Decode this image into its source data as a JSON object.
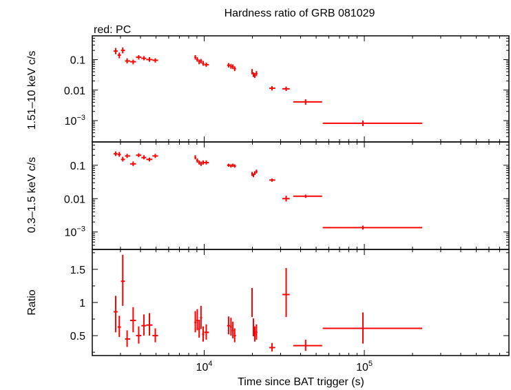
{
  "chart_data": {
    "type": "scatter",
    "title": "Hardness ratio of GRB 081029",
    "subtitle": "red: PC",
    "xlabel": "Time since BAT trigger (s)",
    "x_scale": "log",
    "xlim": [
      2000,
      800000
    ],
    "x_ticks": [
      {
        "value": 10000,
        "base": "10",
        "exp": "4"
      },
      {
        "value": 100000,
        "base": "10",
        "exp": "5"
      }
    ],
    "series_color": "#ff0000",
    "panels": [
      {
        "name": "hard",
        "ylabel": "1.51–10 keV c/s",
        "y_scale": "log",
        "ylim": [
          0.0002,
          0.6
        ],
        "y_ticks": [
          {
            "value": 0.1,
            "label": "0.1"
          },
          {
            "value": 0.01,
            "label": "0.01"
          },
          {
            "value": 0.001,
            "base": "10",
            "exp": "−3"
          }
        ],
        "points": [
          {
            "x": 2800,
            "xlo": 2720,
            "xhi": 2880,
            "y": 0.19,
            "ylo": 0.15,
            "yhi": 0.24
          },
          {
            "x": 2950,
            "xlo": 2880,
            "xhi": 3020,
            "y": 0.14,
            "ylo": 0.11,
            "yhi": 0.17
          },
          {
            "x": 3100,
            "xlo": 3020,
            "xhi": 3200,
            "y": 0.2,
            "ylo": 0.16,
            "yhi": 0.25
          },
          {
            "x": 3300,
            "xlo": 3200,
            "xhi": 3450,
            "y": 0.09,
            "ylo": 0.075,
            "yhi": 0.11
          },
          {
            "x": 3600,
            "xlo": 3450,
            "xhi": 3750,
            "y": 0.085,
            "ylo": 0.07,
            "yhi": 0.1
          },
          {
            "x": 3900,
            "xlo": 3750,
            "xhi": 4050,
            "y": 0.12,
            "ylo": 0.1,
            "yhi": 0.14
          },
          {
            "x": 4200,
            "xlo": 4050,
            "xhi": 4350,
            "y": 0.11,
            "ylo": 0.095,
            "yhi": 0.13
          },
          {
            "x": 4550,
            "xlo": 4350,
            "xhi": 4750,
            "y": 0.1,
            "ylo": 0.085,
            "yhi": 0.12
          },
          {
            "x": 4950,
            "xlo": 4750,
            "xhi": 5150,
            "y": 0.095,
            "ylo": 0.08,
            "yhi": 0.11
          },
          {
            "x": 8800,
            "xlo": 8680,
            "xhi": 8920,
            "y": 0.12,
            "ylo": 0.1,
            "yhi": 0.14
          },
          {
            "x": 9050,
            "xlo": 8920,
            "xhi": 9180,
            "y": 0.1,
            "ylo": 0.085,
            "yhi": 0.12
          },
          {
            "x": 9300,
            "xlo": 9180,
            "xhi": 9420,
            "y": 0.085,
            "ylo": 0.07,
            "yhi": 0.1
          },
          {
            "x": 9550,
            "xlo": 9420,
            "xhi": 9700,
            "y": 0.09,
            "ylo": 0.075,
            "yhi": 0.105
          },
          {
            "x": 9850,
            "xlo": 9700,
            "xhi": 10000,
            "y": 0.075,
            "ylo": 0.063,
            "yhi": 0.09
          },
          {
            "x": 10300,
            "xlo": 10000,
            "xhi": 10700,
            "y": 0.068,
            "ylo": 0.058,
            "yhi": 0.08
          },
          {
            "x": 14200,
            "xlo": 13900,
            "xhi": 14500,
            "y": 0.065,
            "ylo": 0.055,
            "yhi": 0.077
          },
          {
            "x": 14700,
            "xlo": 14500,
            "xhi": 14900,
            "y": 0.06,
            "ylo": 0.05,
            "yhi": 0.072
          },
          {
            "x": 15100,
            "xlo": 14900,
            "xhi": 15300,
            "y": 0.058,
            "ylo": 0.049,
            "yhi": 0.069
          },
          {
            "x": 15500,
            "xlo": 15300,
            "xhi": 15800,
            "y": 0.05,
            "ylo": 0.042,
            "yhi": 0.06
          },
          {
            "x": 19900,
            "xlo": 19700,
            "xhi": 20100,
            "y": 0.04,
            "ylo": 0.033,
            "yhi": 0.049
          },
          {
            "x": 20300,
            "xlo": 20100,
            "xhi": 20500,
            "y": 0.032,
            "ylo": 0.027,
            "yhi": 0.038
          },
          {
            "x": 20700,
            "xlo": 20500,
            "xhi": 20950,
            "y": 0.03,
            "ylo": 0.025,
            "yhi": 0.036
          },
          {
            "x": 21200,
            "xlo": 20950,
            "xhi": 21500,
            "y": 0.035,
            "ylo": 0.029,
            "yhi": 0.042
          },
          {
            "x": 26500,
            "xlo": 25500,
            "xhi": 27800,
            "y": 0.0115,
            "ylo": 0.0097,
            "yhi": 0.0135
          },
          {
            "x": 32500,
            "xlo": 30800,
            "xhi": 34200,
            "y": 0.011,
            "ylo": 0.0093,
            "yhi": 0.013
          },
          {
            "x": 43000,
            "xlo": 36000,
            "xhi": 54500,
            "y": 0.0041,
            "ylo": 0.0033,
            "yhi": 0.005
          },
          {
            "x": 98000,
            "xlo": 55000,
            "xhi": 230000,
            "y": 0.00082,
            "ylo": 0.00066,
            "yhi": 0.001
          }
        ]
      },
      {
        "name": "soft",
        "ylabel": "0.3–1.5 keV c/s",
        "y_scale": "log",
        "ylim": [
          0.0003,
          0.5
        ],
        "y_ticks": [
          {
            "value": 0.1,
            "label": "0.1"
          },
          {
            "value": 0.01,
            "label": "0.01"
          },
          {
            "value": 0.001,
            "base": "10",
            "exp": "−3"
          }
        ],
        "points": [
          {
            "x": 2800,
            "xlo": 2720,
            "xhi": 2880,
            "y": 0.22,
            "ylo": 0.19,
            "yhi": 0.26
          },
          {
            "x": 2950,
            "xlo": 2880,
            "xhi": 3020,
            "y": 0.21,
            "ylo": 0.18,
            "yhi": 0.25
          },
          {
            "x": 3100,
            "xlo": 3020,
            "xhi": 3200,
            "y": 0.15,
            "ylo": 0.13,
            "yhi": 0.18
          },
          {
            "x": 3300,
            "xlo": 3200,
            "xhi": 3450,
            "y": 0.19,
            "ylo": 0.165,
            "yhi": 0.22
          },
          {
            "x": 3600,
            "xlo": 3450,
            "xhi": 3750,
            "y": 0.11,
            "ylo": 0.095,
            "yhi": 0.13
          },
          {
            "x": 3900,
            "xlo": 3750,
            "xhi": 4050,
            "y": 0.2,
            "ylo": 0.175,
            "yhi": 0.23
          },
          {
            "x": 4200,
            "xlo": 4050,
            "xhi": 4350,
            "y": 0.17,
            "ylo": 0.15,
            "yhi": 0.2
          },
          {
            "x": 4550,
            "xlo": 4350,
            "xhi": 4750,
            "y": 0.15,
            "ylo": 0.13,
            "yhi": 0.17
          },
          {
            "x": 4950,
            "xlo": 4750,
            "xhi": 5150,
            "y": 0.19,
            "ylo": 0.165,
            "yhi": 0.22
          },
          {
            "x": 8800,
            "xlo": 8680,
            "xhi": 8920,
            "y": 0.17,
            "ylo": 0.15,
            "yhi": 0.2
          },
          {
            "x": 9050,
            "xlo": 8920,
            "xhi": 9180,
            "y": 0.14,
            "ylo": 0.12,
            "yhi": 0.16
          },
          {
            "x": 9300,
            "xlo": 9180,
            "xhi": 9420,
            "y": 0.12,
            "ylo": 0.105,
            "yhi": 0.14
          },
          {
            "x": 9550,
            "xlo": 9420,
            "xhi": 9700,
            "y": 0.11,
            "ylo": 0.095,
            "yhi": 0.13
          },
          {
            "x": 9850,
            "xlo": 9700,
            "xhi": 10000,
            "y": 0.12,
            "ylo": 0.105,
            "yhi": 0.14
          },
          {
            "x": 10300,
            "xlo": 10000,
            "xhi": 10700,
            "y": 0.12,
            "ylo": 0.105,
            "yhi": 0.14
          },
          {
            "x": 14200,
            "xlo": 13900,
            "xhi": 14500,
            "y": 0.1,
            "ylo": 0.09,
            "yhi": 0.112
          },
          {
            "x": 14700,
            "xlo": 14500,
            "xhi": 14900,
            "y": 0.095,
            "ylo": 0.085,
            "yhi": 0.107
          },
          {
            "x": 15100,
            "xlo": 14900,
            "xhi": 15300,
            "y": 0.1,
            "ylo": 0.09,
            "yhi": 0.112
          },
          {
            "x": 15500,
            "xlo": 15300,
            "xhi": 15800,
            "y": 0.095,
            "ylo": 0.085,
            "yhi": 0.107
          },
          {
            "x": 19900,
            "xlo": 19700,
            "xhi": 20100,
            "y": 0.055,
            "ylo": 0.048,
            "yhi": 0.063
          },
          {
            "x": 20300,
            "xlo": 20100,
            "xhi": 20500,
            "y": 0.05,
            "ylo": 0.044,
            "yhi": 0.057
          },
          {
            "x": 20700,
            "xlo": 20500,
            "xhi": 20950,
            "y": 0.058,
            "ylo": 0.051,
            "yhi": 0.066
          },
          {
            "x": 21200,
            "xlo": 20950,
            "xhi": 21500,
            "y": 0.065,
            "ylo": 0.057,
            "yhi": 0.074
          },
          {
            "x": 26500,
            "xlo": 25500,
            "xhi": 27800,
            "y": 0.036,
            "ylo": 0.032,
            "yhi": 0.04
          },
          {
            "x": 32500,
            "xlo": 30800,
            "xhi": 34200,
            "y": 0.01,
            "ylo": 0.0082,
            "yhi": 0.0122
          },
          {
            "x": 43000,
            "xlo": 36000,
            "xhi": 54500,
            "y": 0.0118,
            "ylo": 0.0105,
            "yhi": 0.0132
          },
          {
            "x": 98000,
            "xlo": 55000,
            "xhi": 230000,
            "y": 0.00135,
            "ylo": 0.00118,
            "yhi": 0.00155
          }
        ]
      },
      {
        "name": "ratio",
        "ylabel": "Ratio",
        "y_scale": "linear",
        "ylim": [
          0.2,
          1.8
        ],
        "y_ticks": [
          {
            "value": 0.5,
            "label": "0.5"
          },
          {
            "value": 1,
            "label": "1"
          },
          {
            "value": 1.5,
            "label": "1.5"
          }
        ],
        "points": [
          {
            "x": 2800,
            "xlo": 2720,
            "xhi": 2880,
            "y": 0.86,
            "ylo": 0.55,
            "yhi": 1.1
          },
          {
            "x": 2950,
            "xlo": 2880,
            "xhi": 3020,
            "y": 0.63,
            "ylo": 0.48,
            "yhi": 0.8
          },
          {
            "x": 3100,
            "xlo": 3020,
            "xhi": 3200,
            "y": 1.32,
            "ylo": 0.95,
            "yhi": 1.72
          },
          {
            "x": 3300,
            "xlo": 3200,
            "xhi": 3450,
            "y": 0.45,
            "ylo": 0.33,
            "yhi": 0.58
          },
          {
            "x": 3600,
            "xlo": 3450,
            "xhi": 3750,
            "y": 0.73,
            "ylo": 0.55,
            "yhi": 0.93
          },
          {
            "x": 3900,
            "xlo": 3750,
            "xhi": 4050,
            "y": 0.5,
            "ylo": 0.38,
            "yhi": 0.64
          },
          {
            "x": 4200,
            "xlo": 4050,
            "xhi": 4350,
            "y": 0.65,
            "ylo": 0.5,
            "yhi": 0.82
          },
          {
            "x": 4550,
            "xlo": 4350,
            "xhi": 4750,
            "y": 0.66,
            "ylo": 0.5,
            "yhi": 0.84
          },
          {
            "x": 4950,
            "xlo": 4750,
            "xhi": 5150,
            "y": 0.5,
            "ylo": 0.4,
            "yhi": 0.61
          },
          {
            "x": 8800,
            "xlo": 8680,
            "xhi": 8920,
            "y": 0.7,
            "ylo": 0.55,
            "yhi": 0.87
          },
          {
            "x": 9050,
            "xlo": 8920,
            "xhi": 9180,
            "y": 0.73,
            "ylo": 0.58,
            "yhi": 0.9
          },
          {
            "x": 9300,
            "xlo": 9180,
            "xhi": 9420,
            "y": 0.6,
            "ylo": 0.47,
            "yhi": 0.74
          },
          {
            "x": 9550,
            "xlo": 9420,
            "xhi": 9700,
            "y": 0.77,
            "ylo": 0.6,
            "yhi": 0.95
          },
          {
            "x": 9850,
            "xlo": 9700,
            "xhi": 10000,
            "y": 0.52,
            "ylo": 0.41,
            "yhi": 0.64
          },
          {
            "x": 10300,
            "xlo": 10000,
            "xhi": 10700,
            "y": 0.55,
            "ylo": 0.44,
            "yhi": 0.67
          },
          {
            "x": 14200,
            "xlo": 13900,
            "xhi": 14500,
            "y": 0.65,
            "ylo": 0.52,
            "yhi": 0.79
          },
          {
            "x": 14700,
            "xlo": 14500,
            "xhi": 14900,
            "y": 0.63,
            "ylo": 0.5,
            "yhi": 0.77
          },
          {
            "x": 15100,
            "xlo": 14900,
            "xhi": 15300,
            "y": 0.58,
            "ylo": 0.46,
            "yhi": 0.71
          },
          {
            "x": 15500,
            "xlo": 15300,
            "xhi": 15800,
            "y": 0.5,
            "ylo": 0.4,
            "yhi": 0.61
          },
          {
            "x": 19900,
            "xlo": 19700,
            "xhi": 20100,
            "y": 0.99,
            "ylo": 0.78,
            "yhi": 1.22
          },
          {
            "x": 20300,
            "xlo": 20100,
            "xhi": 20500,
            "y": 0.62,
            "ylo": 0.49,
            "yhi": 0.76
          },
          {
            "x": 20700,
            "xlo": 20500,
            "xhi": 20950,
            "y": 0.52,
            "ylo": 0.41,
            "yhi": 0.64
          },
          {
            "x": 21200,
            "xlo": 20950,
            "xhi": 21500,
            "y": 0.55,
            "ylo": 0.44,
            "yhi": 0.67
          },
          {
            "x": 26500,
            "xlo": 25500,
            "xhi": 27800,
            "y": 0.32,
            "ylo": 0.26,
            "yhi": 0.39
          },
          {
            "x": 32500,
            "xlo": 30800,
            "xhi": 34200,
            "y": 1.12,
            "ylo": 0.78,
            "yhi": 1.52
          },
          {
            "x": 43000,
            "xlo": 36000,
            "xhi": 54500,
            "y": 0.35,
            "ylo": 0.27,
            "yhi": 0.44
          },
          {
            "x": 98000,
            "xlo": 55000,
            "xhi": 230000,
            "y": 0.61,
            "ylo": 0.38,
            "yhi": 0.85
          }
        ]
      }
    ]
  }
}
